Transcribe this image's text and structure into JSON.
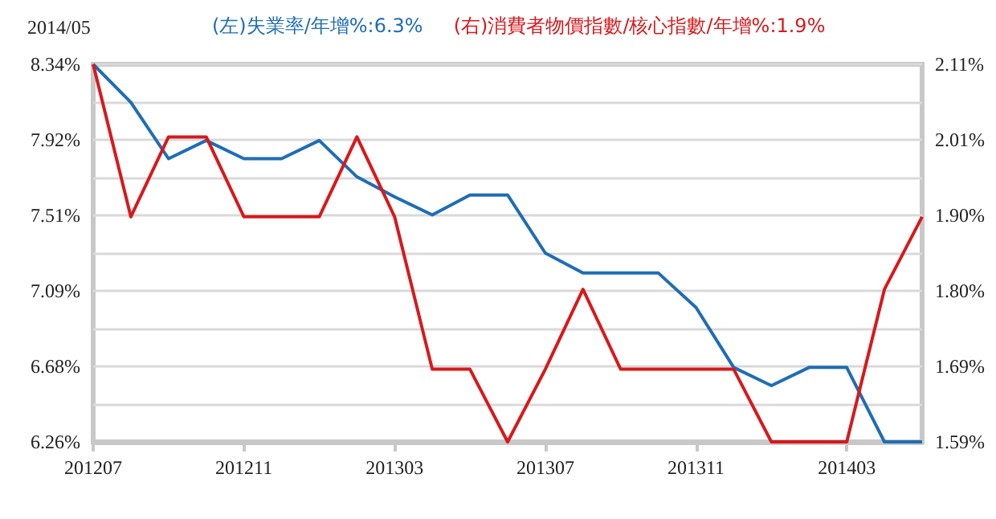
{
  "chart_data": {
    "type": "line",
    "title": "2014/05",
    "categories": [
      "201207",
      null,
      null,
      null,
      "201211",
      null,
      null,
      null,
      "201303",
      null,
      null,
      null,
      "201307",
      null,
      null,
      null,
      "201311",
      null,
      null,
      null,
      "201403",
      null,
      null
    ],
    "series": [
      {
        "name": "(左)失業率/年增%:6.3%",
        "color": "#1f6db5",
        "values": [
          8.34,
          8.13,
          7.82,
          7.92,
          7.82,
          7.82,
          7.92,
          7.72,
          7.61,
          7.51,
          7.62,
          7.62,
          7.3,
          7.19,
          7.19,
          7.19,
          7.0,
          6.67,
          6.57,
          6.67,
          6.67,
          6.26,
          6.26
        ]
      },
      {
        "name": "(右)消費者物價指數/核心指數/年增%:1.9%",
        "color": "#d7191c",
        "axis": "y2",
        "values": [
          2.11,
          1.9,
          2.01,
          2.01,
          1.9,
          1.9,
          1.9,
          2.01,
          1.9,
          1.69,
          1.69,
          1.59,
          1.69,
          1.8,
          1.69,
          1.69,
          1.69,
          1.69,
          1.59,
          1.59,
          1.59,
          1.8,
          1.9
        ]
      }
    ],
    "ylim": [
      6.26,
      8.34
    ],
    "yticks": [
      {
        "value": 6.26,
        "label": "6.26%"
      },
      {
        "value": 6.468,
        "label": null
      },
      {
        "value": 6.676,
        "label": "6.68%"
      },
      {
        "value": 6.884,
        "label": null
      },
      {
        "value": 7.092,
        "label": "7.09%"
      },
      {
        "value": 7.3,
        "label": null
      },
      {
        "value": 7.508,
        "label": "7.51%"
      },
      {
        "value": 7.716,
        "label": null
      },
      {
        "value": 7.924,
        "label": "7.92%"
      },
      {
        "value": 8.132,
        "label": null
      },
      {
        "value": 8.34,
        "label": "8.34%"
      }
    ],
    "y2lim": [
      1.59,
      2.11
    ],
    "y2ticks": [
      {
        "value": 1.59,
        "label": "1.59%"
      },
      {
        "value": 1.694,
        "label": "1.69%"
      },
      {
        "value": 1.798,
        "label": "1.80%"
      },
      {
        "value": 1.902,
        "label": "1.90%"
      },
      {
        "value": 2.006,
        "label": "2.01%"
      },
      {
        "value": 2.11,
        "label": "2.11%"
      }
    ],
    "grid": "y",
    "legend": "top left",
    "marker": "none",
    "line_style": "solid"
  }
}
